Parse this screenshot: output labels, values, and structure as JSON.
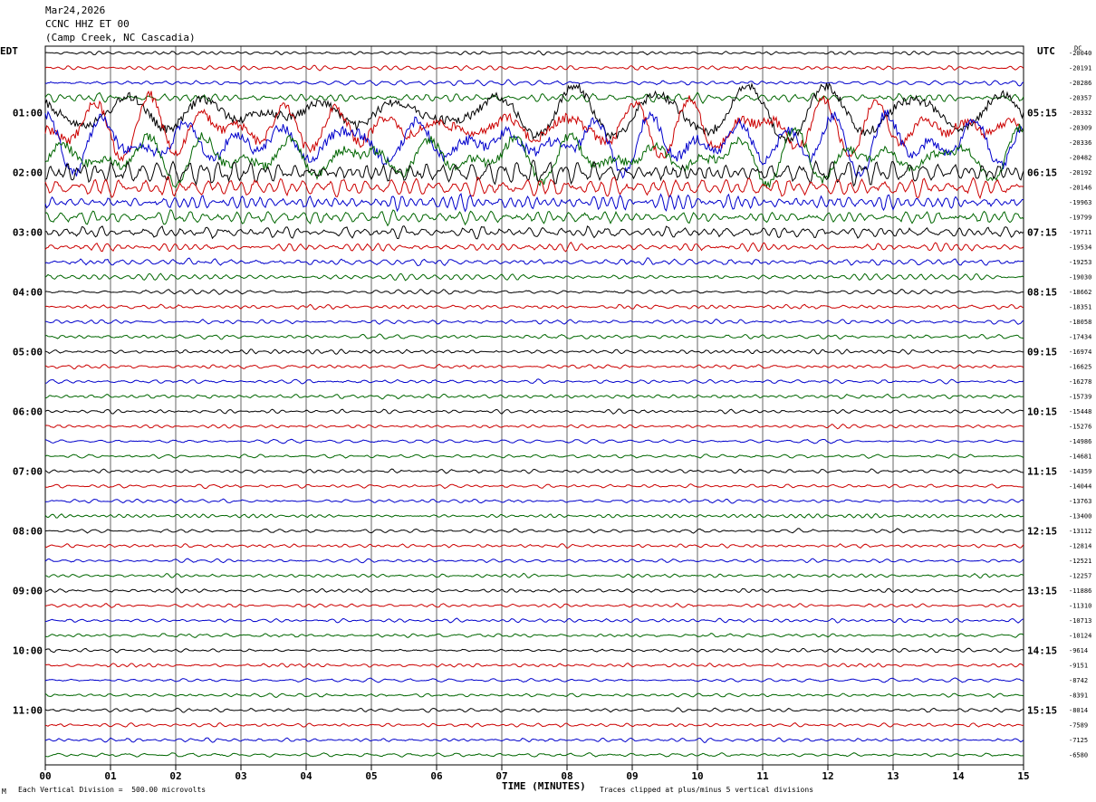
{
  "header": {
    "date": "Mar24,2026",
    "channel": "CCNC HHZ ET 00",
    "station": "(Camp Creek, NC Cascadia)"
  },
  "left_tz": "EDT",
  "right_tz": "UTC",
  "footer": {
    "xlabel": "TIME (MINUTES)",
    "scale_note": "Each Vertical Division =  500.00 microvolts",
    "clip_note": "Traces clipped at plus/minus 5 vertical divisions",
    "corner_mark": "M"
  },
  "colors": {
    "cycle": [
      "#000000",
      "#cc0000",
      "#0000cc",
      "#006600"
    ],
    "grid": "#000000"
  },
  "chart_data": {
    "type": "line",
    "title": "",
    "xlabel": "TIME (MINUTES)",
    "x_ticks": [
      "00",
      "01",
      "02",
      "03",
      "04",
      "05",
      "06",
      "07",
      "08",
      "09",
      "10",
      "11",
      "12",
      "13",
      "14",
      "15"
    ],
    "xlim": [
      0,
      15
    ],
    "left_hour_labels": [
      "01:00",
      "02:00",
      "03:00",
      "04:00",
      "05:00",
      "06:00",
      "07:00",
      "08:00",
      "09:00",
      "10:00",
      "11:00"
    ],
    "right_hour_labels": [
      "05:15",
      "06:15",
      "07:15",
      "08:15",
      "09:15",
      "10:15",
      "11:15",
      "12:15",
      "13:15",
      "14:15",
      "15:15"
    ],
    "trace_count": 48,
    "traces_per_hour": 4,
    "first_labeled_trace": 4,
    "right_offset_top": "DC",
    "right_offsets": [
      -20040,
      -20191,
      -20286,
      -20357,
      -20332,
      -20309,
      -20336,
      -20482,
      -20192,
      -20146,
      -19963,
      -19799,
      -19711,
      -19534,
      -19253,
      -19030,
      -18662,
      -18351,
      -18058,
      -17434,
      -16974,
      -16625,
      -16278,
      -15739,
      -15448,
      -15276,
      -14986,
      -14681,
      -14359,
      -14044,
      -13763,
      -13400,
      -13112,
      -12814,
      -12521,
      -12257,
      -11886,
      -11310,
      -10713,
      -10124,
      -9614,
      -9151,
      -8742,
      -8391,
      -8014,
      -7589,
      -7125,
      -6580
    ],
    "trace_amplitude_divisions": [
      0.25,
      0.3,
      0.35,
      0.6,
      3.5,
      3.8,
      4.0,
      3.5,
      1.4,
      1.2,
      1.0,
      0.9,
      0.8,
      0.55,
      0.45,
      0.4,
      0.3,
      0.3,
      0.3,
      0.3,
      0.3,
      0.28,
      0.28,
      0.28,
      0.28,
      0.26,
      0.26,
      0.26,
      0.26,
      0.26,
      0.26,
      0.26,
      0.26,
      0.26,
      0.26,
      0.26,
      0.26,
      0.26,
      0.26,
      0.26,
      0.26,
      0.26,
      0.26,
      0.26,
      0.26,
      0.26,
      0.26,
      0.26
    ],
    "clip_divisions": 5
  }
}
